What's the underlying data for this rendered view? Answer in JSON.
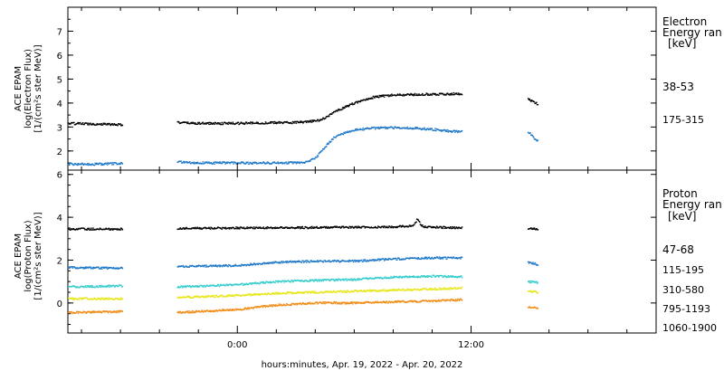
{
  "xlabel": "hours:minutes, Apr. 19, 2022 - Apr. 20, 2022",
  "x_ticks": [
    {
      "label": "0:00",
      "hour": 0
    },
    {
      "label": "12:00",
      "hour": 12
    }
  ],
  "colors": {
    "black": "#000000",
    "blue": "#1f78c8",
    "cyan": "#33cccc",
    "yellow": "#e6e619",
    "orange": "#f08c14"
  },
  "chart_data": [
    {
      "type": "scatter",
      "panel": "electron",
      "ylabel_lines": [
        "ACE EPAM",
        "log(Electron Flux)",
        "[1/(cm²s ster MeV)]"
      ],
      "legend_title": [
        "Electron",
        "Energy ran"
      ],
      "legend_unit": "[keV]",
      "ylim": [
        1.2,
        8.0
      ],
      "yticks": [
        2,
        3,
        4,
        5,
        6,
        7
      ],
      "xlim": [
        -8.7,
        21.5
      ],
      "series": [
        {
          "name": "38-53",
          "color": "#000000",
          "x": [
            -8.7,
            -7,
            -5.9,
            -3.1,
            -2,
            0,
            2,
            3.5,
            4.3,
            5,
            6,
            7,
            8,
            9,
            10,
            11,
            11.5,
            14.9,
            15.2,
            15.4
          ],
          "y": [
            3.15,
            3.12,
            3.1,
            3.18,
            3.15,
            3.15,
            3.18,
            3.2,
            3.3,
            3.65,
            4.0,
            4.25,
            4.33,
            4.35,
            4.37,
            4.38,
            4.38,
            4.15,
            4.05,
            3.95
          ]
        },
        {
          "name": "175-315",
          "color": "#1f78c8",
          "x": [
            -8.7,
            -7,
            -5.9,
            -3.1,
            -2,
            0,
            2,
            3.5,
            4.0,
            4.5,
            5,
            6,
            7,
            8,
            9,
            10,
            11,
            11.5,
            15.0,
            15.2,
            15.4
          ],
          "y": [
            1.45,
            1.45,
            1.48,
            1.55,
            1.5,
            1.5,
            1.5,
            1.52,
            1.7,
            2.2,
            2.6,
            2.88,
            2.95,
            2.97,
            2.95,
            2.9,
            2.82,
            2.8,
            2.75,
            2.5,
            2.4
          ]
        }
      ]
    },
    {
      "type": "scatter",
      "panel": "proton",
      "ylabel_lines": [
        "ACE EPAM",
        "log(Proton Flux)",
        "[1/(cm²s ster MeV)]"
      ],
      "legend_title": [
        "Proton",
        "Energy ran"
      ],
      "legend_unit": "[keV]",
      "ylim": [
        -1.4,
        6.2
      ],
      "yticks": [
        0,
        2,
        4,
        6
      ],
      "xlim": [
        -8.7,
        21.5
      ],
      "series": [
        {
          "name": "47-68",
          "color": "#000000",
          "x": [
            -8.7,
            -5.9,
            -3.1,
            0,
            4,
            8,
            9,
            9.2,
            9.5,
            11.5,
            14.9,
            15.4
          ],
          "y": [
            3.45,
            3.45,
            3.48,
            3.5,
            3.52,
            3.55,
            3.6,
            3.9,
            3.55,
            3.5,
            3.48,
            3.45
          ]
        },
        {
          "name": "115-195",
          "color": "#1f78c8",
          "x": [
            -8.7,
            -5.9,
            -3.1,
            0,
            2,
            4,
            6,
            8,
            10,
            11.5,
            14.9,
            15.4
          ],
          "y": [
            1.65,
            1.62,
            1.7,
            1.75,
            1.9,
            1.95,
            1.95,
            2.05,
            2.1,
            2.1,
            1.9,
            1.8
          ]
        },
        {
          "name": "310-580",
          "color": "#33cccc",
          "x": [
            -8.7,
            -5.9,
            -3.1,
            0,
            2,
            4,
            6,
            8,
            10,
            11.5,
            14.9,
            15.4
          ],
          "y": [
            0.75,
            0.8,
            0.75,
            0.85,
            1.0,
            1.05,
            1.1,
            1.2,
            1.25,
            1.22,
            1.0,
            0.95
          ]
        },
        {
          "name": "795-1193",
          "color": "#e6e619",
          "x": [
            -8.7,
            -5.9,
            -3.1,
            0,
            2,
            4,
            6,
            8,
            10,
            11.5,
            14.9,
            15.4
          ],
          "y": [
            0.2,
            0.2,
            0.25,
            0.35,
            0.45,
            0.5,
            0.55,
            0.6,
            0.65,
            0.7,
            0.55,
            0.5
          ]
        },
        {
          "name": "1060-1900",
          "color": "#f08c14",
          "x": [
            -8.7,
            -5.9,
            -3.1,
            0,
            2,
            4,
            6,
            8,
            10,
            11.5,
            14.9,
            15.4
          ],
          "y": [
            -0.45,
            -0.4,
            -0.45,
            -0.3,
            -0.1,
            0.0,
            0.0,
            0.05,
            0.1,
            0.15,
            -0.2,
            -0.25
          ]
        }
      ]
    }
  ]
}
